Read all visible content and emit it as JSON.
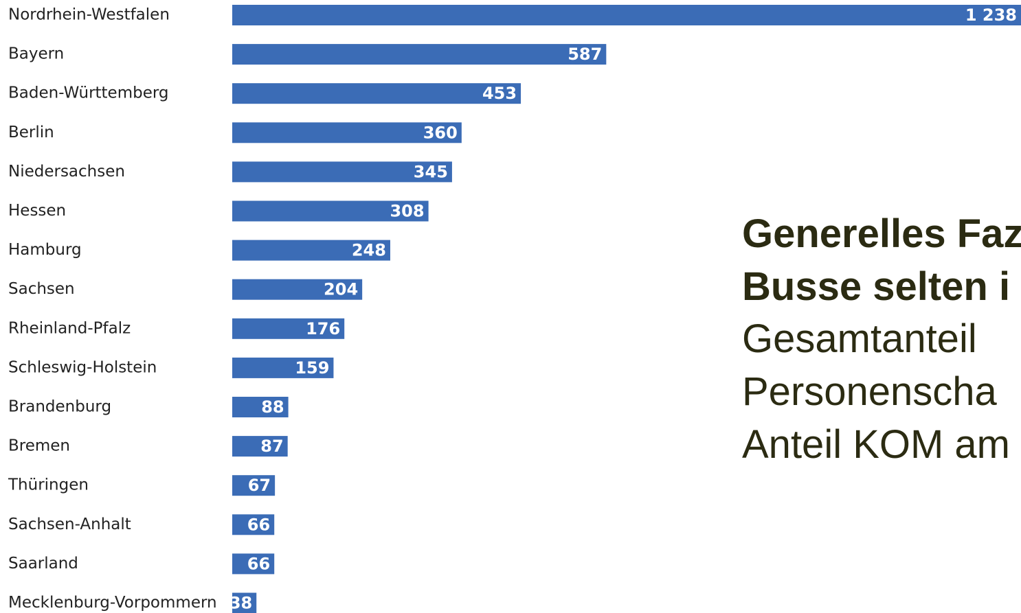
{
  "chart_data": {
    "type": "bar",
    "orientation": "horizontal",
    "color": "#3b6cb6",
    "categories": [
      "Nordrhein-Westfalen",
      "Bayern",
      "Baden-Württemberg",
      "Berlin",
      "Niedersachsen",
      "Hessen",
      "Hamburg",
      "Sachsen",
      "Rheinland-Pfalz",
      "Schleswig-Holstein",
      "Brandenburg",
      "Bremen",
      "Thüringen",
      "Sachsen-Anhalt",
      "Saarland",
      "Mecklenburg-Vorpommern"
    ],
    "values": [
      1238,
      587,
      453,
      360,
      345,
      308,
      248,
      204,
      176,
      159,
      88,
      87,
      67,
      66,
      66,
      38
    ],
    "value_labels": [
      "1 238",
      "587",
      "453",
      "360",
      "345",
      "308",
      "248",
      "204",
      "176",
      "159",
      "88",
      "87",
      "67",
      "66",
      "66",
      "38"
    ],
    "annotations": [
      {
        "text": "Generelles Faz",
        "bold": true
      },
      {
        "text": "Busse selten i",
        "bold": true
      },
      {
        "text": "Gesamtanteil",
        "bold": false
      },
      {
        "text": "Personenscha",
        "bold": false
      },
      {
        "text": "Anteil KOM am",
        "bold": false
      }
    ]
  }
}
